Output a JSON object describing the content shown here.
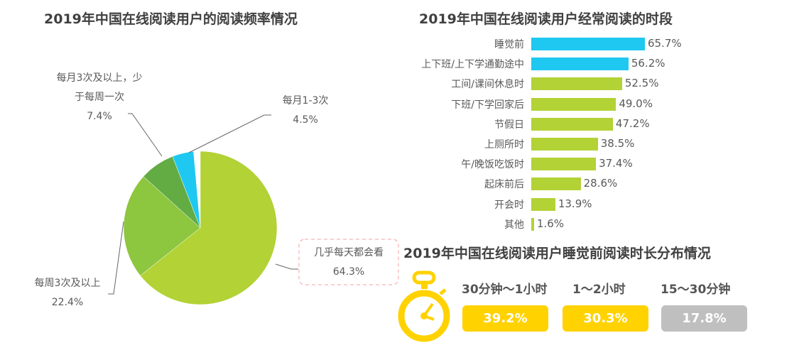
{
  "colors": {
    "lime": "#b2d235",
    "green": "#8dc63f",
    "dark_green": "#62ac43",
    "blue": "#1ec8f0",
    "yellow": "#ffd200",
    "gray": "#bfbfbf"
  },
  "chart_data": [
    {
      "type": "pie",
      "title": "2019年中国在线阅读用户的阅读频率情况",
      "slices": [
        {
          "label": "几乎每天都会看",
          "value": 64.3,
          "value_label": "64.3%"
        },
        {
          "label": "每周3次及以上",
          "value": 22.4,
          "value_label": "22.4%"
        },
        {
          "label_line1": "每月3次及以上，少",
          "label_line2": "于每周一次",
          "value": 7.4,
          "value_label": "7.4%"
        },
        {
          "label": "每月1-3次",
          "value": 4.5,
          "value_label": "4.5%"
        }
      ]
    },
    {
      "type": "bar",
      "orientation": "horizontal",
      "title": "2019年中国在线阅读用户经常阅读的时段",
      "categories": [
        "睡觉前",
        "上下班/上下学通勤途中",
        "工间/课间休息时",
        "下班/下学回家后",
        "节假日",
        "上厕所时",
        "午/晚饭吃饭时",
        "起床前后",
        "开会时",
        "其他"
      ],
      "values": [
        65.7,
        56.2,
        52.5,
        49.0,
        47.2,
        38.5,
        37.4,
        28.6,
        13.9,
        1.6
      ],
      "value_labels": [
        "65.7%",
        "56.2%",
        "52.5%",
        "49.0%",
        "47.2%",
        "38.5%",
        "37.4%",
        "28.6%",
        "13.9%",
        "1.6%"
      ],
      "highlight_count": 2
    },
    {
      "type": "table",
      "title": "2019年中国在线阅读用户睡觉前阅读时长分布情况",
      "items": [
        {
          "label": "30分钟～1小时",
          "value": "39.2%"
        },
        {
          "label": "1～2小时",
          "value": "30.3%"
        },
        {
          "label": "15～30分钟",
          "value": "17.8%"
        }
      ]
    }
  ]
}
